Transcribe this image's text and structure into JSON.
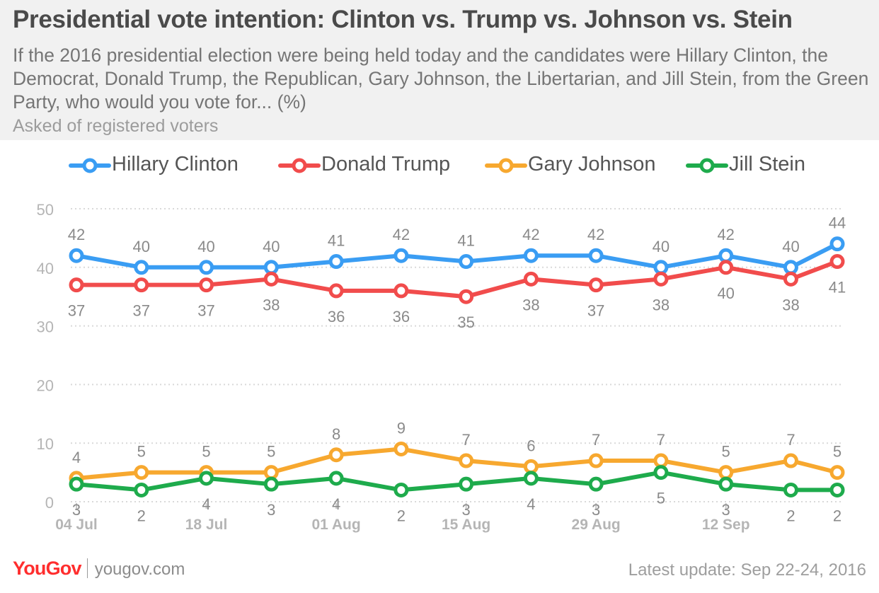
{
  "header": {
    "title": "Presidential vote intention: Clinton vs. Trump vs. Johnson vs. Stein",
    "subtitle": "If the 2016 presidential election were being held today and the candidates were Hillary Clinton, the Democrat, Donald Trump, the Republican, Gary Johnson, the Libertarian, and Jill Stein, from the Green Party, who would you vote for... (%)",
    "note": "Asked of registered voters"
  },
  "footer": {
    "logo_you": "YouGov",
    "site": "yougov.com",
    "updated": "Latest update: Sep 22-24, 2016"
  },
  "colors": {
    "clinton": "#3a9df3",
    "trump": "#f14c4c",
    "johnson": "#f7a82f",
    "stein": "#1eab4c",
    "grid": "#d9d9d9",
    "axis_text": "#b5b5b5",
    "label_text": "#8a8a8a",
    "header_bg": "#f1f1f1"
  },
  "chart_data": {
    "type": "line",
    "title": "Presidential vote intention: Clinton vs. Trump vs. Johnson vs. Stein",
    "xlabel": "",
    "ylabel": "",
    "ylim": [
      0,
      50
    ],
    "yticks": [
      "0",
      "10",
      "20",
      "30",
      "40",
      "50"
    ],
    "x": [
      "2016-07-04",
      "2016-07-11",
      "2016-07-18",
      "2016-07-25",
      "2016-08-01",
      "2016-08-08",
      "2016-08-15",
      "2016-08-22",
      "2016-08-29",
      "2016-09-05",
      "2016-09-12",
      "2016-09-19",
      "2016-09-24"
    ],
    "xtick_labels": [
      "04 Jul",
      "18 Jul",
      "01 Aug",
      "15 Aug",
      "29 Aug",
      "12 Sep"
    ],
    "xtick_positions": [
      "2016-07-04",
      "2016-07-18",
      "2016-08-01",
      "2016-08-15",
      "2016-08-29",
      "2016-09-12"
    ],
    "grid": true,
    "legend_position": "top",
    "series": [
      {
        "name": "Hillary Clinton",
        "color_key": "clinton",
        "label_position": "above",
        "values": [
          42,
          40,
          40,
          40,
          41,
          42,
          41,
          42,
          42,
          40,
          42,
          40,
          44
        ]
      },
      {
        "name": "Donald Trump",
        "color_key": "trump",
        "label_position": "below",
        "values": [
          37,
          37,
          37,
          38,
          36,
          36,
          35,
          38,
          37,
          38,
          40,
          38,
          41
        ]
      },
      {
        "name": "Gary Johnson",
        "color_key": "johnson",
        "label_position": "above",
        "values": [
          4,
          5,
          5,
          5,
          8,
          9,
          7,
          6,
          7,
          7,
          5,
          7,
          5
        ]
      },
      {
        "name": "Jill Stein",
        "color_key": "stein",
        "label_position": "below",
        "values": [
          3,
          2,
          4,
          3,
          4,
          2,
          3,
          4,
          3,
          5,
          3,
          2,
          2
        ]
      }
    ]
  }
}
